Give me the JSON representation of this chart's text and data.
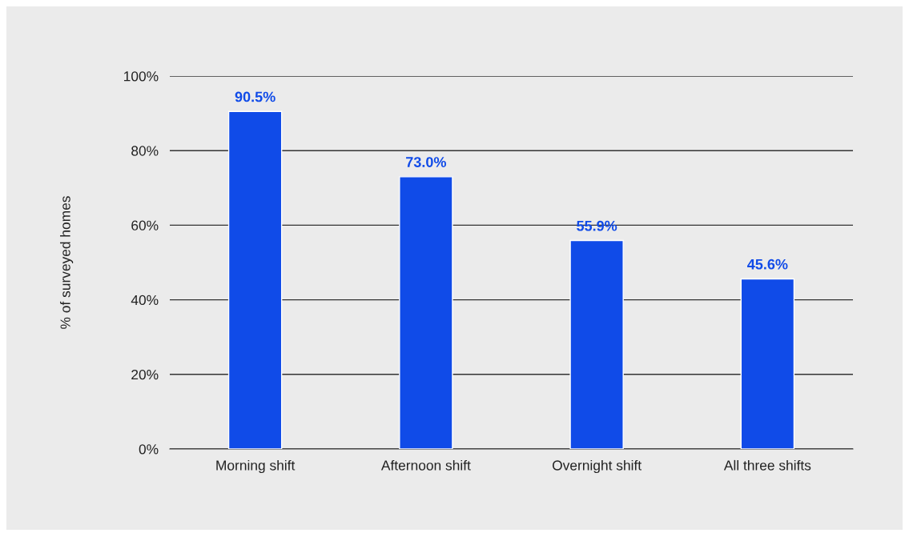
{
  "chart_data": {
    "type": "bar",
    "categories": [
      "Morning shift",
      "Afternoon shift",
      "Overnight shift",
      "All three shifts"
    ],
    "values": [
      90.5,
      73.0,
      55.9,
      45.6
    ],
    "value_labels": [
      "90.5%",
      "73.0%",
      "55.9%",
      "45.6%"
    ],
    "color": "#104be8",
    "ylabel": "% of surveyed homes",
    "ylim": [
      0,
      100
    ],
    "yticks": [
      {
        "value": 0,
        "label": "0%"
      },
      {
        "value": 20,
        "label": "20%"
      },
      {
        "value": 40,
        "label": "40%"
      },
      {
        "value": 60,
        "label": "60%"
      },
      {
        "value": 80,
        "label": "80%"
      },
      {
        "value": 100,
        "label": "100%"
      }
    ],
    "grid": "y"
  }
}
